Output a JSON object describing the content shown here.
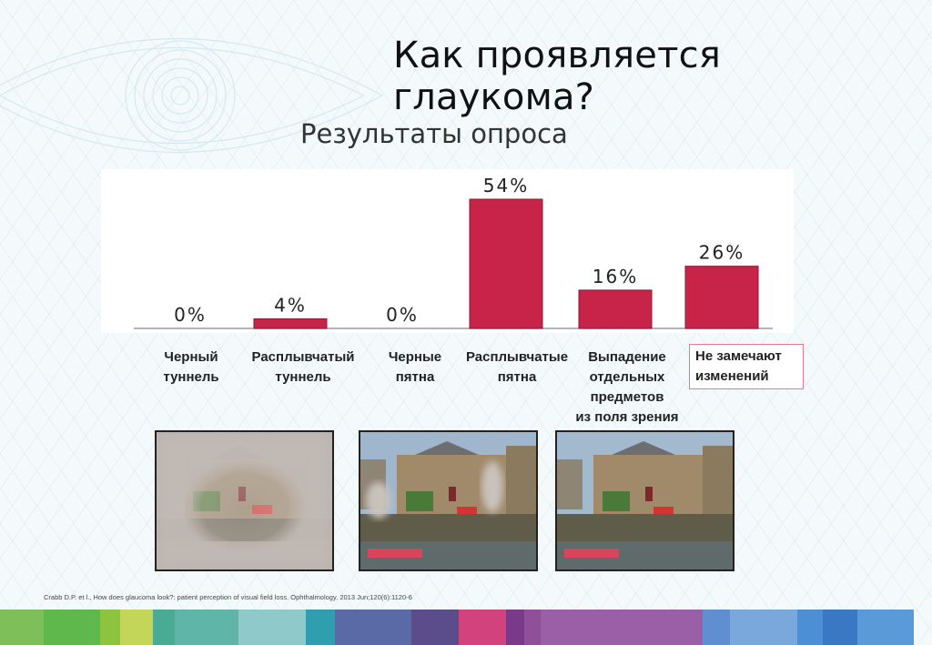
{
  "slide": {
    "title": "Как проявляется глаукома?",
    "subtitle": "Результаты опроса",
    "citation": "Crabb D.P. et l., How does glaucoma look?: patient perception of visual field loss. Ophthalmology. 2013 Jun;120(6):1120-6"
  },
  "chart_data": {
    "type": "bar",
    "categories": [
      "Черный туннель",
      "Расплывчатый туннель",
      "Черные пятна",
      "Расплывчатые пятна",
      "Выпадение отдельных предметов из поля зрения",
      "Не замечают изменений"
    ],
    "category_lines": [
      [
        "Черный",
        "туннель"
      ],
      [
        "Расплывчатый",
        "туннель"
      ],
      [
        "Черные",
        "пятна"
      ],
      [
        "Расплывчатые",
        "пятна"
      ],
      [
        "Выпадение",
        "отдельных",
        "предметов",
        "из поля зрения"
      ],
      [
        "Не замечают",
        "изменений"
      ]
    ],
    "values": [
      0,
      4,
      0,
      54,
      16,
      26
    ],
    "data_labels": [
      "0%",
      "4%",
      "0%",
      "54%",
      "16%",
      "26%"
    ],
    "ylim": [
      0,
      54
    ],
    "grid": false,
    "bar_color": "#c8244a",
    "highlighted_category": "Не замечают изменений"
  },
  "photos": [
    {
      "name": "blurred-tunnel-photo"
    },
    {
      "name": "blurred-spots-photo"
    },
    {
      "name": "no-change-photo"
    }
  ],
  "colors": {
    "stripe": [
      "#7fbf5a",
      "#5fb84b",
      "#8cc43f",
      "#c3d65a",
      "#4aab95",
      "#5fb6a8",
      "#8fc9c9",
      "#2f9fb0",
      "#5a6aa6",
      "#5b4c8c",
      "#d2427c",
      "#7a3a8a",
      "#8f4f9a",
      "#9a5fa6",
      "#5f8fd0",
      "#7aa7dc",
      "#4d8fd3",
      "#3a78c6",
      "#5a9ad8"
    ]
  }
}
